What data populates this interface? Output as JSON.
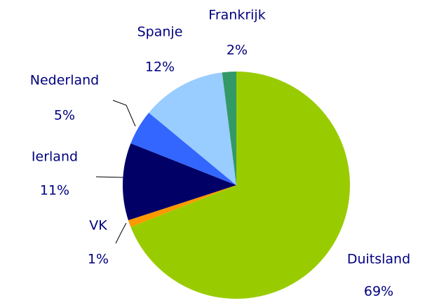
{
  "chart_data": {
    "type": "pie",
    "categories": [
      "Duitsland",
      "VK",
      "Ierland",
      "Nederland",
      "Spanje",
      "Frankrijk"
    ],
    "values": [
      69,
      1,
      11,
      5,
      12,
      2
    ],
    "value_labels": [
      "69%",
      "1%",
      "11%",
      "5%",
      "12%",
      "2%"
    ],
    "colors": [
      "#99cc00",
      "#ff9900",
      "#000066",
      "#3366ff",
      "#99ccff",
      "#339966"
    ]
  }
}
